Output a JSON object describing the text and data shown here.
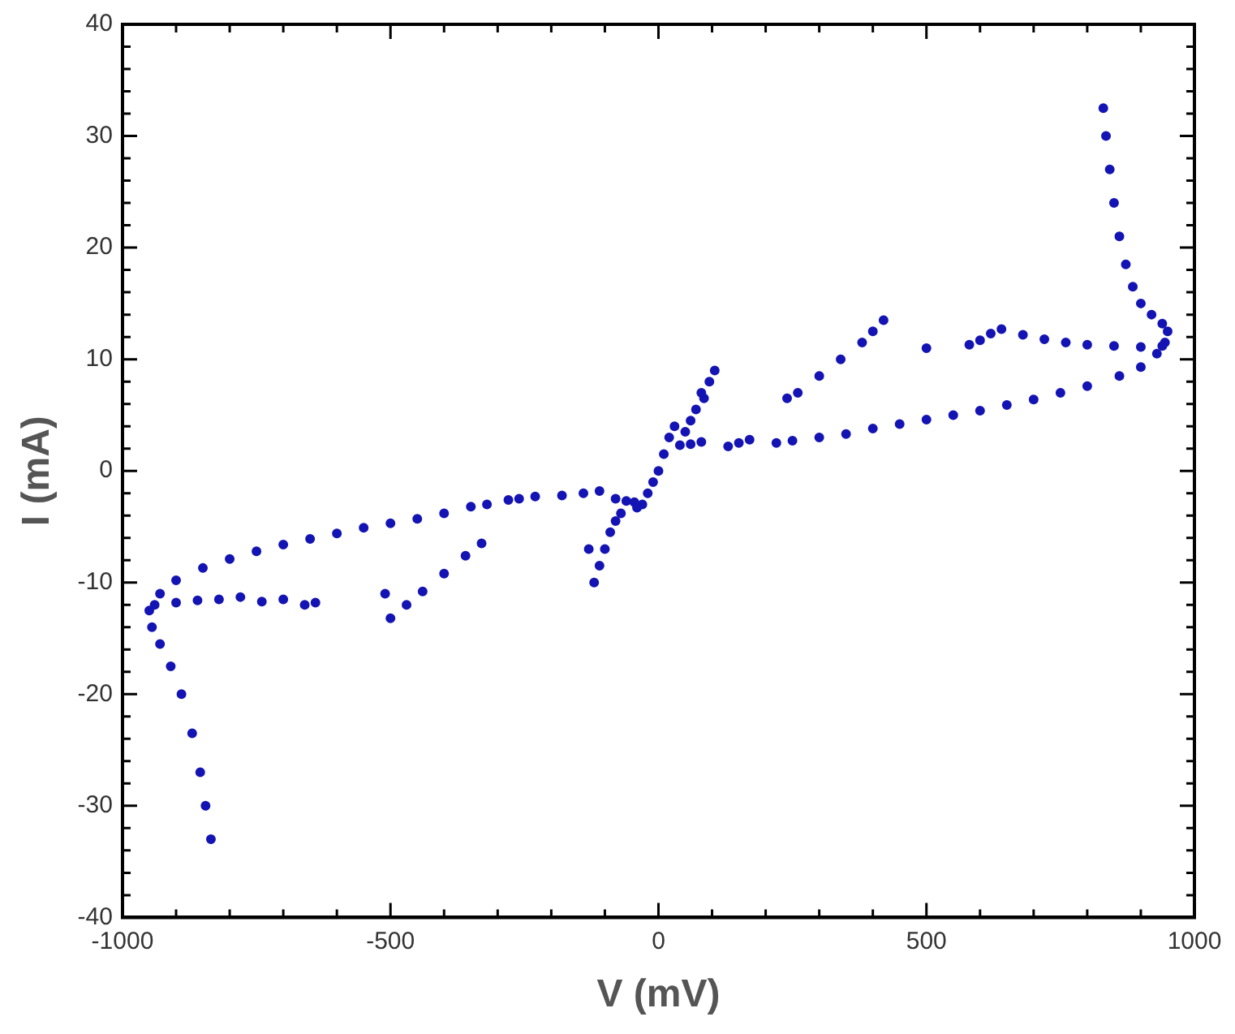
{
  "chart_data": {
    "type": "scatter",
    "xlabel": "V (mV)",
    "ylabel": "I (mA)",
    "marker": "circle",
    "grid": false,
    "legend": false,
    "xlim": [
      -1000,
      1000
    ],
    "ylim": [
      -40,
      40
    ],
    "xticks": [
      -1000,
      {
        "value": -900,
        "label": null
      },
      {
        "value": -800,
        "label": null
      },
      {
        "value": -700,
        "label": null
      },
      {
        "value": -600,
        "label": null
      },
      -500,
      {
        "value": -400,
        "label": null
      },
      {
        "value": -300,
        "label": null
      },
      {
        "value": -200,
        "label": null
      },
      {
        "value": -100,
        "label": null
      },
      0,
      {
        "value": 100,
        "label": null
      },
      {
        "value": 200,
        "label": null
      },
      {
        "value": 300,
        "label": null
      },
      {
        "value": 400,
        "label": null
      },
      500,
      {
        "value": 600,
        "label": null
      },
      {
        "value": 700,
        "label": null
      },
      {
        "value": 800,
        "label": null
      },
      {
        "value": 900,
        "label": null
      },
      1000
    ],
    "yticks": [
      -40,
      {
        "value": -38,
        "label": null
      },
      {
        "value": -36,
        "label": null
      },
      {
        "value": -34,
        "label": null
      },
      {
        "value": -32,
        "label": null
      },
      -30,
      {
        "value": -28,
        "label": null
      },
      {
        "value": -26,
        "label": null
      },
      {
        "value": -24,
        "label": null
      },
      {
        "value": -22,
        "label": null
      },
      -20,
      {
        "value": -18,
        "label": null
      },
      {
        "value": -16,
        "label": null
      },
      {
        "value": -14,
        "label": null
      },
      {
        "value": -12,
        "label": null
      },
      -10,
      {
        "value": -8,
        "label": null
      },
      {
        "value": -6,
        "label": null
      },
      {
        "value": -4,
        "label": null
      },
      {
        "value": -2,
        "label": null
      },
      0,
      {
        "value": 2,
        "label": null
      },
      {
        "value": 4,
        "label": null
      },
      {
        "value": 6,
        "label": null
      },
      {
        "value": 8,
        "label": null
      },
      10,
      {
        "value": 12,
        "label": null
      },
      {
        "value": 14,
        "label": null
      },
      {
        "value": 16,
        "label": null
      },
      {
        "value": 18,
        "label": null
      },
      20,
      {
        "value": 22,
        "label": null
      },
      {
        "value": 24,
        "label": null
      },
      {
        "value": 26,
        "label": null
      },
      {
        "value": 28,
        "label": null
      },
      30,
      {
        "value": 32,
        "label": null
      },
      {
        "value": 34,
        "label": null
      },
      {
        "value": 36,
        "label": null
      },
      {
        "value": 38,
        "label": null
      },
      40
    ],
    "series": [
      {
        "color": "#1414b4",
        "x": [
          830,
          835,
          842,
          850,
          860,
          872,
          885,
          900,
          920,
          940,
          950,
          945,
          930,
          900,
          860,
          800,
          750,
          700,
          650,
          600,
          550,
          500,
          450,
          400,
          350,
          300,
          250,
          220,
          170,
          150,
          130,
          80,
          60,
          40,
          30,
          20,
          10,
          0,
          -10,
          -20,
          -30,
          -40,
          -45,
          -60,
          -80,
          -110,
          -140,
          -180,
          -230,
          -260,
          -280,
          -320,
          -350,
          -400,
          -450,
          -500,
          -550,
          -600,
          -650,
          -700,
          -750,
          -800,
          -850,
          -900,
          -930,
          -950,
          -945,
          -930,
          -910,
          -890,
          -870,
          -855,
          -845,
          -835,
          940,
          900,
          850,
          800,
          760,
          720,
          680,
          640,
          620,
          600,
          580,
          500,
          420,
          400,
          380,
          340,
          300,
          260,
          240,
          105,
          95,
          85,
          80,
          70,
          60,
          50,
          -120,
          -110,
          -100,
          -90,
          -80,
          -70,
          -130,
          -500,
          -470,
          -440,
          -400,
          -360,
          -330,
          -510,
          -940,
          -900,
          -860,
          -820,
          -780,
          -740,
          -700,
          -660,
          -640
        ],
        "values": [
          32.5,
          30,
          27,
          24,
          21,
          18.5,
          16.5,
          15,
          14,
          13.2,
          12.5,
          11.5,
          10.5,
          9.3,
          8.5,
          7.6,
          7,
          6.4,
          5.9,
          5.4,
          5,
          4.6,
          4.2,
          3.8,
          3.3,
          3,
          2.7,
          2.5,
          2.8,
          2.5,
          2.2,
          2.6,
          2.4,
          2.3,
          4,
          3,
          1.5,
          0,
          -1,
          -2,
          -3,
          -3.3,
          -2.8,
          -2.7,
          -2.5,
          -1.8,
          -2,
          -2.2,
          -2.3,
          -2.5,
          -2.6,
          -3,
          -3.2,
          -3.8,
          -4.3,
          -4.7,
          -5.1,
          -5.6,
          -6.1,
          -6.6,
          -7.2,
          -7.9,
          -8.7,
          -9.8,
          -11,
          -12.5,
          -14,
          -15.5,
          -17.5,
          -20,
          -23.5,
          -27,
          -30,
          -33,
          11.2,
          11.1,
          11.2,
          11.3,
          11.5,
          11.8,
          12.2,
          12.7,
          12.3,
          11.7,
          11.3,
          11,
          13.5,
          12.5,
          11.5,
          10,
          8.5,
          7,
          6.5,
          9,
          8,
          6.5,
          7,
          5.5,
          4.5,
          3.5,
          -10,
          -8.5,
          -7,
          -5.5,
          -4.5,
          -3.8,
          -7,
          -13.2,
          -12,
          -10.8,
          -9.2,
          -7.6,
          -6.5,
          -11,
          -12,
          -11.8,
          -11.6,
          -11.5,
          -11.3,
          -11.7,
          -11.5,
          -12,
          -11.8
        ]
      }
    ]
  }
}
